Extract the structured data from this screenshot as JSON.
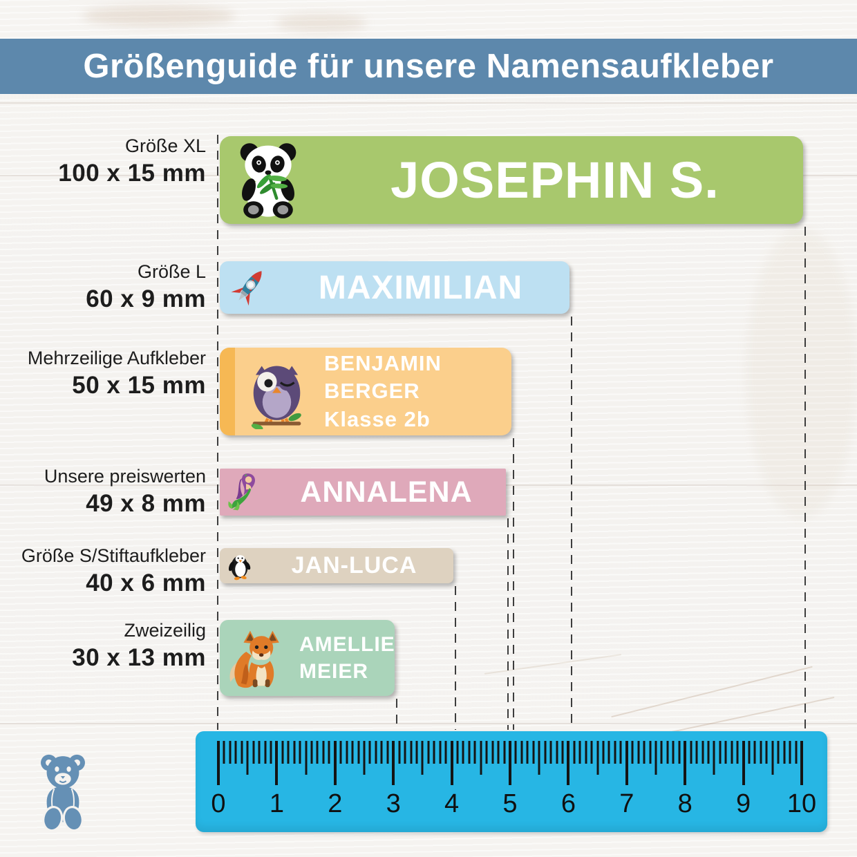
{
  "header": {
    "title": "Größenguide für unsere Namensaufkleber",
    "bg_color": "#5d88ac",
    "text_color": "#ffffff"
  },
  "stickers": [
    {
      "id": "xl",
      "label_line1": "Größe XL",
      "label_line2": "100 x 15 mm",
      "lines": [
        "JOSEPHIN S."
      ],
      "icon": "panda-icon",
      "bg": "#a8c86d",
      "width_mm": 100,
      "height_mm": 15
    },
    {
      "id": "l",
      "label_line1": "Größe L",
      "label_line2": "60 x 9 mm",
      "lines": [
        "MAXIMILIAN"
      ],
      "icon": "rocket-icon",
      "bg": "#bde0f2",
      "width_mm": 60,
      "height_mm": 9
    },
    {
      "id": "multiline",
      "label_line1": "Mehrzeilige Aufkleber",
      "label_line2": "50 x 15 mm",
      "lines": [
        "BENJAMIN",
        "BERGER",
        "Klasse 2b"
      ],
      "icon": "owl-icon",
      "bg": "#fbcf8c",
      "accent": "#f6b854",
      "width_mm": 50,
      "height_mm": 15
    },
    {
      "id": "budget",
      "label_line1": "Unsere preiswerten",
      "label_line2": "49 x 8 mm",
      "lines": [
        "ANNALENA"
      ],
      "icon": "mermaid-icon",
      "bg": "#dfa9ba",
      "width_mm": 49,
      "height_mm": 8
    },
    {
      "id": "s",
      "label_line1": "Größe S/Stiftaufkleber",
      "label_line2": "40 x 6 mm",
      "lines": [
        "JAN-LUCA"
      ],
      "icon": "penguin-icon",
      "bg": "#ded2c0",
      "width_mm": 40,
      "height_mm": 6
    },
    {
      "id": "twoline",
      "label_line1": "Zweizeilig",
      "label_line2": "30 x 13 mm",
      "lines": [
        "AMELLIE",
        "MEIER"
      ],
      "icon": "fox-icon",
      "bg": "#aad4ba",
      "width_mm": 30,
      "height_mm": 13
    }
  ],
  "ruler": {
    "unit_labels": [
      "0",
      "1",
      "2",
      "3",
      "4",
      "5",
      "6",
      "7",
      "8",
      "9",
      "10"
    ],
    "bg": "#27b6e4",
    "tick_color": "#141414",
    "cm_count": 10
  },
  "logo": {
    "name": "teddy-bear-logo",
    "color": "#6590b5"
  }
}
